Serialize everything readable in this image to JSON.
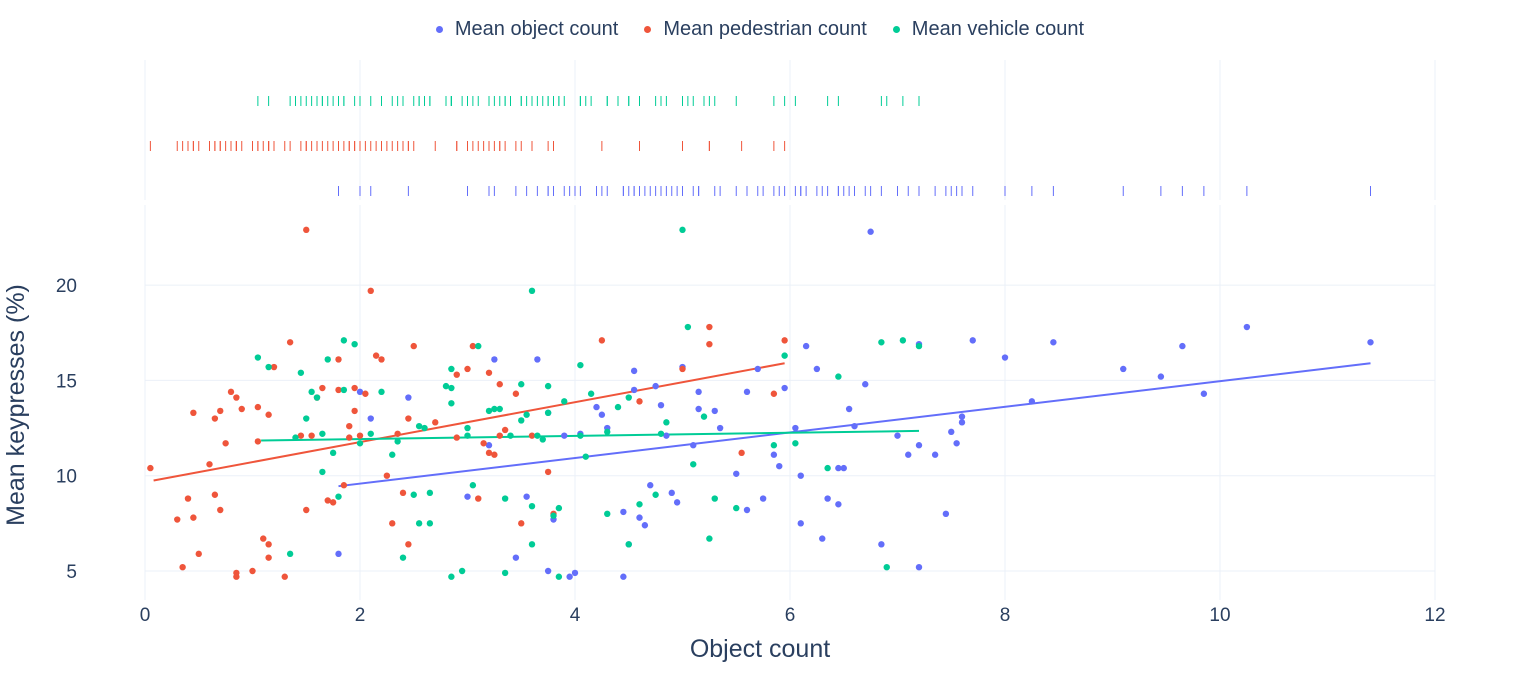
{
  "chart_data": {
    "type": "scatter",
    "xlabel": "Object count",
    "ylabel": "Mean keypresses (%)",
    "xlim": [
      -0.5,
      12
    ],
    "ylim": [
      3.5,
      23.5
    ],
    "x_ticks": [
      0,
      2,
      4,
      6,
      8,
      10,
      12
    ],
    "y_ticks": [
      5,
      10,
      15,
      20
    ],
    "x_tick_labels": [
      "0",
      "2",
      "4",
      "6",
      "8",
      "10",
      "12"
    ],
    "y_tick_labels": [
      "5",
      "10",
      "15",
      "20"
    ],
    "grid": true,
    "legend_position": "top-center",
    "marginal": "rug-top",
    "series": [
      {
        "name": "Mean object count",
        "color": "#636efa",
        "trend": [
          [
            1.8,
            9.45
          ],
          [
            11.4,
            15.9
          ]
        ],
        "points": [
          [
            1.8,
            5.9
          ],
          [
            2.0,
            14.4
          ],
          [
            2.1,
            13.0
          ],
          [
            2.45,
            14.1
          ],
          [
            3.0,
            8.9
          ],
          [
            3.2,
            11.6
          ],
          [
            3.25,
            16.1
          ],
          [
            3.45,
            5.7
          ],
          [
            3.55,
            8.9
          ],
          [
            3.65,
            16.1
          ],
          [
            3.75,
            13.3
          ],
          [
            3.75,
            5.0
          ],
          [
            3.8,
            7.7
          ],
          [
            3.9,
            12.1
          ],
          [
            3.95,
            4.7
          ],
          [
            4.0,
            4.9
          ],
          [
            4.05,
            12.2
          ],
          [
            4.2,
            13.6
          ],
          [
            4.25,
            13.2
          ],
          [
            4.3,
            12.5
          ],
          [
            4.45,
            8.1
          ],
          [
            4.45,
            4.7
          ],
          [
            4.5,
            6.4
          ],
          [
            4.55,
            14.5
          ],
          [
            4.55,
            15.5
          ],
          [
            4.6,
            7.8
          ],
          [
            4.65,
            7.4
          ],
          [
            4.7,
            9.5
          ],
          [
            4.75,
            14.7
          ],
          [
            4.8,
            13.7
          ],
          [
            4.85,
            12.1
          ],
          [
            4.9,
            9.1
          ],
          [
            4.95,
            8.6
          ],
          [
            5.0,
            15.7
          ],
          [
            5.1,
            11.6
          ],
          [
            5.15,
            13.5
          ],
          [
            5.15,
            14.4
          ],
          [
            5.3,
            13.4
          ],
          [
            5.35,
            12.5
          ],
          [
            5.5,
            10.1
          ],
          [
            5.6,
            8.2
          ],
          [
            5.6,
            14.4
          ],
          [
            5.7,
            15.6
          ],
          [
            5.75,
            8.8
          ],
          [
            5.85,
            11.1
          ],
          [
            5.9,
            10.5
          ],
          [
            5.95,
            14.6
          ],
          [
            6.05,
            12.5
          ],
          [
            6.1,
            7.5
          ],
          [
            6.1,
            10.0
          ],
          [
            6.15,
            16.8
          ],
          [
            6.25,
            15.6
          ],
          [
            6.3,
            6.7
          ],
          [
            6.35,
            8.8
          ],
          [
            6.45,
            8.5
          ],
          [
            6.45,
            10.4
          ],
          [
            6.5,
            10.4
          ],
          [
            6.55,
            13.5
          ],
          [
            6.6,
            12.6
          ],
          [
            6.7,
            14.8
          ],
          [
            6.75,
            22.8
          ],
          [
            6.85,
            6.4
          ],
          [
            7.0,
            12.1
          ],
          [
            7.1,
            11.1
          ],
          [
            7.2,
            16.9
          ],
          [
            7.2,
            11.6
          ],
          [
            7.2,
            5.2
          ],
          [
            7.35,
            11.1
          ],
          [
            7.45,
            8.0
          ],
          [
            7.5,
            12.3
          ],
          [
            7.55,
            11.7
          ],
          [
            7.6,
            13.1
          ],
          [
            7.6,
            12.8
          ],
          [
            7.7,
            17.1
          ],
          [
            8.0,
            16.2
          ],
          [
            8.25,
            13.9
          ],
          [
            8.45,
            17.0
          ],
          [
            9.1,
            15.6
          ],
          [
            9.45,
            15.2
          ],
          [
            9.65,
            16.8
          ],
          [
            9.85,
            14.3
          ],
          [
            10.25,
            17.8
          ],
          [
            11.4,
            17.0
          ]
        ]
      },
      {
        "name": "Mean pedestrian count",
        "color": "#ef553b",
        "trend": [
          [
            0.08,
            9.75
          ],
          [
            5.95,
            15.9
          ]
        ],
        "points": [
          [
            0.05,
            10.4
          ],
          [
            0.3,
            7.7
          ],
          [
            0.35,
            5.2
          ],
          [
            0.4,
            8.8
          ],
          [
            0.45,
            13.3
          ],
          [
            0.45,
            7.8
          ],
          [
            0.5,
            5.9
          ],
          [
            0.6,
            10.6
          ],
          [
            0.65,
            13.0
          ],
          [
            0.65,
            9.0
          ],
          [
            0.7,
            13.4
          ],
          [
            0.7,
            8.2
          ],
          [
            0.75,
            11.7
          ],
          [
            0.8,
            14.4
          ],
          [
            0.85,
            14.1
          ],
          [
            0.85,
            4.9
          ],
          [
            0.85,
            4.7
          ],
          [
            0.9,
            13.5
          ],
          [
            1.0,
            5.0
          ],
          [
            1.05,
            11.8
          ],
          [
            1.05,
            13.6
          ],
          [
            1.1,
            6.7
          ],
          [
            1.15,
            13.2
          ],
          [
            1.15,
            6.4
          ],
          [
            1.15,
            5.7
          ],
          [
            1.2,
            15.7
          ],
          [
            1.3,
            4.7
          ],
          [
            1.35,
            17.0
          ],
          [
            1.45,
            12.1
          ],
          [
            1.5,
            22.9
          ],
          [
            1.5,
            8.2
          ],
          [
            1.55,
            12.1
          ],
          [
            1.6,
            14.1
          ],
          [
            1.65,
            14.6
          ],
          [
            1.7,
            8.7
          ],
          [
            1.75,
            8.6
          ],
          [
            1.8,
            14.5
          ],
          [
            1.8,
            16.1
          ],
          [
            1.85,
            9.5
          ],
          [
            1.9,
            12.0
          ],
          [
            1.9,
            12.6
          ],
          [
            1.95,
            14.6
          ],
          [
            1.95,
            13.4
          ],
          [
            2.0,
            12.1
          ],
          [
            2.05,
            14.3
          ],
          [
            2.1,
            19.7
          ],
          [
            2.15,
            16.3
          ],
          [
            2.2,
            16.1
          ],
          [
            2.25,
            10.0
          ],
          [
            2.3,
            7.5
          ],
          [
            2.35,
            12.2
          ],
          [
            2.4,
            9.1
          ],
          [
            2.45,
            6.4
          ],
          [
            2.45,
            13.0
          ],
          [
            2.5,
            16.8
          ],
          [
            2.7,
            12.8
          ],
          [
            2.9,
            15.3
          ],
          [
            2.9,
            12.0
          ],
          [
            3.0,
            15.6
          ],
          [
            3.05,
            16.8
          ],
          [
            3.1,
            8.8
          ],
          [
            3.15,
            11.7
          ],
          [
            3.2,
            15.4
          ],
          [
            3.2,
            11.2
          ],
          [
            3.25,
            11.1
          ],
          [
            3.3,
            14.8
          ],
          [
            3.3,
            12.1
          ],
          [
            3.35,
            12.4
          ],
          [
            3.45,
            14.3
          ],
          [
            3.5,
            7.5
          ],
          [
            3.6,
            12.1
          ],
          [
            3.75,
            10.2
          ],
          [
            3.8,
            8.0
          ],
          [
            4.25,
            17.1
          ],
          [
            4.6,
            13.9
          ],
          [
            5.0,
            15.6
          ],
          [
            5.25,
            17.8
          ],
          [
            5.25,
            16.9
          ],
          [
            5.55,
            11.2
          ],
          [
            5.85,
            14.3
          ],
          [
            5.95,
            17.1
          ]
        ]
      },
      {
        "name": "Mean vehicle count",
        "color": "#00cc96",
        "trend": [
          [
            1.08,
            11.85
          ],
          [
            7.2,
            12.35
          ]
        ],
        "points": [
          [
            1.05,
            16.2
          ],
          [
            1.15,
            15.7
          ],
          [
            1.35,
            5.9
          ],
          [
            1.4,
            12.0
          ],
          [
            1.45,
            15.4
          ],
          [
            1.5,
            13.0
          ],
          [
            1.55,
            14.4
          ],
          [
            1.6,
            14.1
          ],
          [
            1.65,
            12.2
          ],
          [
            1.65,
            10.2
          ],
          [
            1.7,
            16.1
          ],
          [
            1.75,
            11.2
          ],
          [
            1.8,
            8.9
          ],
          [
            1.85,
            17.1
          ],
          [
            1.85,
            14.5
          ],
          [
            1.95,
            16.9
          ],
          [
            2.0,
            11.7
          ],
          [
            2.1,
            12.2
          ],
          [
            2.2,
            14.4
          ],
          [
            2.3,
            11.1
          ],
          [
            2.35,
            11.8
          ],
          [
            2.4,
            5.7
          ],
          [
            2.5,
            9.0
          ],
          [
            2.55,
            12.6
          ],
          [
            2.55,
            7.5
          ],
          [
            2.6,
            12.5
          ],
          [
            2.65,
            9.1
          ],
          [
            2.65,
            7.5
          ],
          [
            2.8,
            14.7
          ],
          [
            2.85,
            14.6
          ],
          [
            2.85,
            15.6
          ],
          [
            2.85,
            13.8
          ],
          [
            2.85,
            4.7
          ],
          [
            2.95,
            5.0
          ],
          [
            3.0,
            12.1
          ],
          [
            3.0,
            12.5
          ],
          [
            3.05,
            9.5
          ],
          [
            3.1,
            16.8
          ],
          [
            3.2,
            13.4
          ],
          [
            3.25,
            13.5
          ],
          [
            3.3,
            13.5
          ],
          [
            3.35,
            8.8
          ],
          [
            3.35,
            4.9
          ],
          [
            3.4,
            12.1
          ],
          [
            3.5,
            14.8
          ],
          [
            3.5,
            12.9
          ],
          [
            3.55,
            13.2
          ],
          [
            3.6,
            19.7
          ],
          [
            3.6,
            6.4
          ],
          [
            3.6,
            8.4
          ],
          [
            3.65,
            12.1
          ],
          [
            3.7,
            11.9
          ],
          [
            3.75,
            14.7
          ],
          [
            3.75,
            13.3
          ],
          [
            3.8,
            7.9
          ],
          [
            3.85,
            8.3
          ],
          [
            3.85,
            4.7
          ],
          [
            3.9,
            13.9
          ],
          [
            4.05,
            12.1
          ],
          [
            4.05,
            15.8
          ],
          [
            4.1,
            11.0
          ],
          [
            4.15,
            14.3
          ],
          [
            4.3,
            8.0
          ],
          [
            4.3,
            12.3
          ],
          [
            4.4,
            13.6
          ],
          [
            4.5,
            14.1
          ],
          [
            4.5,
            6.4
          ],
          [
            4.6,
            8.5
          ],
          [
            4.75,
            9.0
          ],
          [
            4.8,
            12.2
          ],
          [
            4.85,
            12.8
          ],
          [
            5.0,
            22.9
          ],
          [
            5.05,
            17.8
          ],
          [
            5.1,
            10.6
          ],
          [
            5.2,
            13.1
          ],
          [
            5.25,
            6.7
          ],
          [
            5.3,
            8.8
          ],
          [
            5.5,
            8.3
          ],
          [
            5.85,
            11.6
          ],
          [
            5.95,
            16.3
          ],
          [
            6.05,
            11.7
          ],
          [
            6.35,
            10.4
          ],
          [
            6.45,
            15.2
          ],
          [
            6.85,
            17.0
          ],
          [
            6.9,
            5.2
          ],
          [
            7.05,
            17.1
          ],
          [
            7.2,
            16.8
          ]
        ]
      }
    ]
  }
}
